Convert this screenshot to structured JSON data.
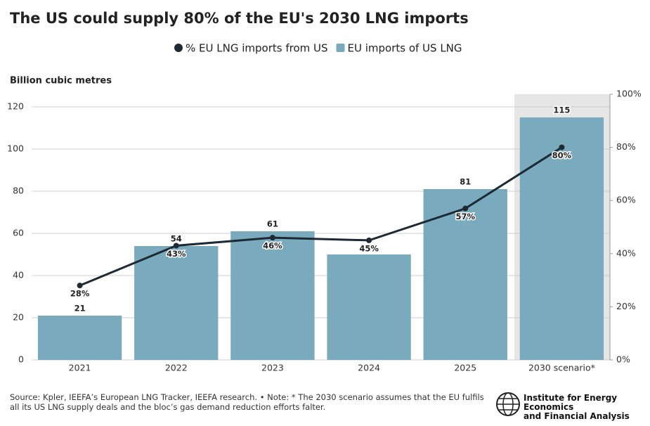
{
  "title": "The US could supply 80% of the EU's 2030 LNG imports",
  "note": "Source: Kpler, IEEFA’s European LNG Tracker, IEEFA research. • Note: * The 2030 scenario assumes that the EU fulfils all its US LNG supply deals and the bloc’s gas demand reduction efforts falter.",
  "logo": [
    "Institute for Energy Economics",
    "and Financial Analysis"
  ],
  "chart_data": {
    "type": "bar",
    "y_label": "Billion cubic metres",
    "categories": [
      "2021",
      "2022",
      "2023",
      "2024",
      "2025",
      "2030 scenario*"
    ],
    "series": [
      {
        "name": "% EU LNG imports from US",
        "type": "line",
        "axis": "y2",
        "color": "#1d2a33",
        "values": [
          28,
          43,
          46,
          45,
          57,
          80
        ],
        "value_labels": [
          "28%",
          "43%",
          "46%",
          "45%",
          "57%",
          "80%"
        ]
      },
      {
        "name": "EU imports of US LNG",
        "type": "bar",
        "color": "#7aaabd",
        "values": [
          21,
          54,
          61,
          50,
          81,
          115
        ],
        "value_labels": [
          "21",
          "54",
          "61",
          null,
          "81",
          "115"
        ]
      }
    ],
    "ylim": [
      0,
      126
    ],
    "yticks": [
      0,
      20,
      40,
      60,
      80,
      100,
      120
    ],
    "y2lim": [
      0,
      100
    ],
    "y2ticks": [
      {
        "value": 0,
        "label": "0%"
      },
      {
        "value": 20,
        "label": "20%"
      },
      {
        "value": 40,
        "label": "40%"
      },
      {
        "value": 60,
        "label": "60%"
      },
      {
        "value": 80,
        "label": "80%"
      },
      {
        "value": 100,
        "label": "100%"
      }
    ],
    "grid": true
  }
}
